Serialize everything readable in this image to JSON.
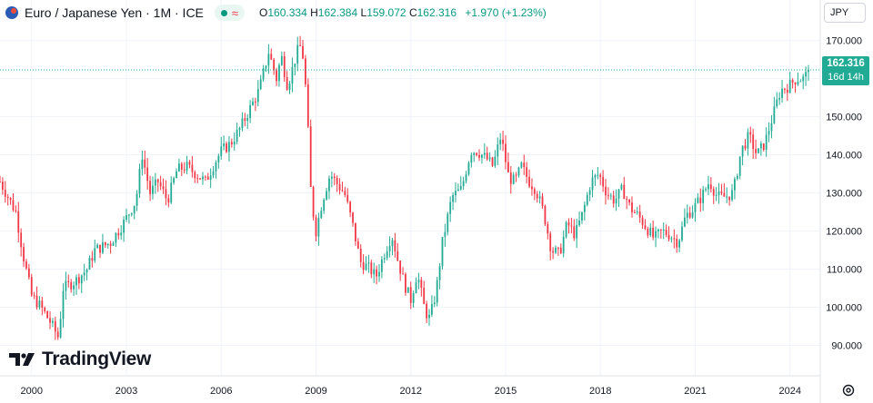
{
  "header": {
    "title": "Euro / Japanese Yen · 1M · ICE",
    "flag_icon": "eur-jpy-flag-icon",
    "status_icons": [
      "market-open-dot-icon",
      "wave-icon"
    ],
    "ohlc": {
      "o_label": "O",
      "o": "160.334",
      "h_label": "H",
      "h": "162.384",
      "l_label": "L",
      "l": "159.072",
      "c_label": "C",
      "c": "162.316",
      "change": "+1.970 (+1.23%)"
    }
  },
  "currency_button": "JPY",
  "price_tag": {
    "price": "162.316",
    "countdown": "16d 14h"
  },
  "logo_text": "TradingView",
  "colors": {
    "up": "#22ab94",
    "down": "#f23645",
    "grid": "#f0f3fa",
    "axis_text": "#131722",
    "price_line": "#22ab94"
  },
  "chart_data": {
    "type": "candlestick",
    "title": "Euro / Japanese Yen · 1M · ICE",
    "y_ticks": [
      "170.000",
      "160.000",
      "150.000",
      "140.000",
      "130.000",
      "120.000",
      "110.000",
      "100.000",
      "90.000"
    ],
    "y_tick_values": [
      170,
      160,
      150,
      140,
      130,
      120,
      110,
      100,
      90
    ],
    "ylim": [
      82.5,
      173.5
    ],
    "x_ticks": [
      "2000",
      "2003",
      "2006",
      "2009",
      "2012",
      "2015",
      "2018",
      "2021",
      "2024"
    ],
    "x_tick_years": [
      2000,
      2003,
      2006,
      2009,
      2012,
      2015,
      2018,
      2021,
      2024
    ],
    "xlim": [
      1999.0,
      2024.9
    ],
    "grid": true,
    "last_price": 162.316,
    "closes_by_year_start": [
      [
        1999.0,
        133
      ],
      [
        1999.5,
        125
      ],
      [
        1999.75,
        113
      ],
      [
        2000.0,
        103
      ],
      [
        2000.3,
        100
      ],
      [
        2000.6,
        96
      ],
      [
        2000.85,
        92
      ],
      [
        2001.0,
        105
      ],
      [
        2001.4,
        107
      ],
      [
        2001.75,
        110
      ],
      [
        2002.0,
        115
      ],
      [
        2002.5,
        117
      ],
      [
        2002.9,
        122
      ],
      [
        2003.3,
        128
      ],
      [
        2003.5,
        140
      ],
      [
        2003.75,
        130
      ],
      [
        2004.0,
        133
      ],
      [
        2004.3,
        128
      ],
      [
        2004.6,
        136
      ],
      [
        2004.9,
        137
      ],
      [
        2005.2,
        135
      ],
      [
        2005.5,
        133
      ],
      [
        2005.8,
        138
      ],
      [
        2006.0,
        141
      ],
      [
        2006.3,
        143
      ],
      [
        2006.6,
        147
      ],
      [
        2006.9,
        152
      ],
      [
        2007.2,
        157
      ],
      [
        2007.5,
        167
      ],
      [
        2007.75,
        160
      ],
      [
        2007.9,
        166
      ],
      [
        2008.1,
        158
      ],
      [
        2008.4,
        167
      ],
      [
        2008.55,
        169
      ],
      [
        2008.7,
        155
      ],
      [
        2008.85,
        128
      ],
      [
        2009.0,
        120
      ],
      [
        2009.2,
        128
      ],
      [
        2009.45,
        135
      ],
      [
        2009.7,
        132
      ],
      [
        2009.9,
        130
      ],
      [
        2010.15,
        122
      ],
      [
        2010.4,
        112
      ],
      [
        2010.7,
        110
      ],
      [
        2010.9,
        108
      ],
      [
        2011.2,
        115
      ],
      [
        2011.4,
        119
      ],
      [
        2011.6,
        112
      ],
      [
        2011.8,
        106
      ],
      [
        2012.0,
        102
      ],
      [
        2012.2,
        109
      ],
      [
        2012.45,
        99
      ],
      [
        2012.6,
        97
      ],
      [
        2012.8,
        104
      ],
      [
        2013.0,
        117
      ],
      [
        2013.3,
        129
      ],
      [
        2013.6,
        131
      ],
      [
        2013.9,
        141
      ],
      [
        2014.1,
        141
      ],
      [
        2014.4,
        139
      ],
      [
        2014.6,
        137
      ],
      [
        2014.85,
        145
      ],
      [
        2015.1,
        134
      ],
      [
        2015.3,
        133
      ],
      [
        2015.5,
        137
      ],
      [
        2015.75,
        133
      ],
      [
        2015.95,
        131
      ],
      [
        2016.2,
        125
      ],
      [
        2016.45,
        115
      ],
      [
        2016.7,
        114
      ],
      [
        2016.95,
        122
      ],
      [
        2017.2,
        119
      ],
      [
        2017.45,
        125
      ],
      [
        2017.7,
        133
      ],
      [
        2017.95,
        135
      ],
      [
        2018.2,
        130
      ],
      [
        2018.45,
        128
      ],
      [
        2018.7,
        131
      ],
      [
        2018.95,
        126
      ],
      [
        2019.2,
        124
      ],
      [
        2019.45,
        121
      ],
      [
        2019.7,
        118
      ],
      [
        2019.95,
        120
      ],
      [
        2020.2,
        119
      ],
      [
        2020.45,
        117
      ],
      [
        2020.7,
        124
      ],
      [
        2020.95,
        126
      ],
      [
        2021.2,
        129
      ],
      [
        2021.45,
        133
      ],
      [
        2021.7,
        129
      ],
      [
        2021.95,
        129
      ],
      [
        2022.2,
        130
      ],
      [
        2022.45,
        141
      ],
      [
        2022.7,
        145
      ],
      [
        2022.95,
        140
      ],
      [
        2023.2,
        143
      ],
      [
        2023.45,
        150
      ],
      [
        2023.7,
        157
      ],
      [
        2023.95,
        158
      ],
      [
        2024.2,
        160
      ],
      [
        2024.45,
        160
      ],
      [
        2024.6,
        162.316
      ]
    ]
  }
}
